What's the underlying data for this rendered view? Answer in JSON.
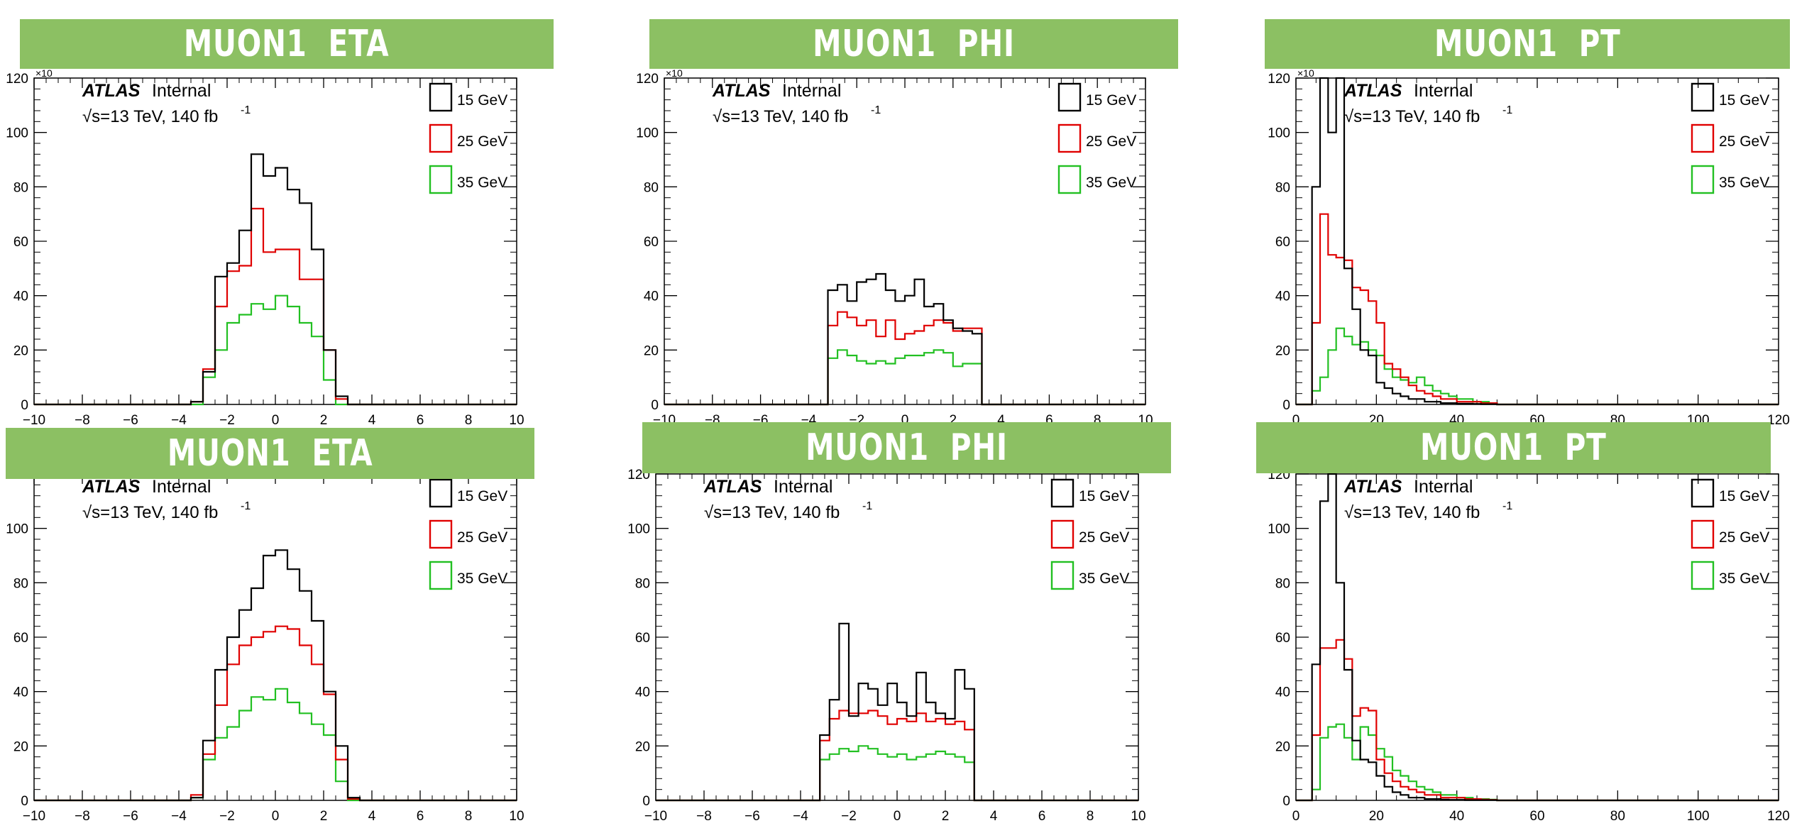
{
  "panel_style": {
    "banner_color": "#8cc063",
    "series_colors": [
      "#000000",
      "#e00000",
      "#22c022"
    ],
    "experiment": "ATLAS",
    "experiment_status": "Internal",
    "energy_label": "√s=13 TeV, 140 fb",
    "lumi_exp": "-1",
    "multiplier": "×10"
  },
  "chart_data": [
    {
      "type": "line",
      "step": true,
      "title": "MUON1  ETA",
      "xlabel": "",
      "ylabel": "",
      "xlim": [
        -10,
        10
      ],
      "ylim": [
        0,
        120
      ],
      "xticks": [
        "−10",
        "−8",
        "−6",
        "−4",
        "−2",
        "0",
        "2",
        "4",
        "6",
        "8",
        "10"
      ],
      "yticks": [
        "0",
        "20",
        "40",
        "60",
        "80",
        "100",
        "120"
      ],
      "show_multiplier": true,
      "legend_position": "top-right",
      "bin_edges": [
        -3.5,
        -3.0,
        -2.5,
        -2.0,
        -1.5,
        -1.0,
        -0.5,
        0.0,
        0.5,
        1.0,
        1.5,
        2.0,
        2.5,
        3.0,
        3.5
      ],
      "series": [
        {
          "name": "15 GeV",
          "color": "#000000",
          "values": [
            1,
            12,
            47,
            52,
            64,
            92,
            84,
            87,
            79,
            74,
            57,
            20,
            3,
            0
          ]
        },
        {
          "name": "25 GeV",
          "color": "#e00000",
          "values": [
            1,
            13,
            36,
            49,
            51,
            72,
            56,
            57,
            57,
            46,
            46,
            20,
            2,
            0
          ]
        },
        {
          "name": "35 GeV",
          "color": "#22c022",
          "values": [
            0,
            10,
            20,
            30,
            33,
            37,
            35,
            40,
            36,
            30,
            25,
            9,
            0,
            0
          ]
        }
      ]
    },
    {
      "type": "line",
      "step": true,
      "title": "MUON1  PHI",
      "xlabel": "",
      "ylabel": "",
      "xlim": [
        -10,
        10
      ],
      "ylim": [
        0,
        120
      ],
      "xticks": [
        "−10",
        "−8",
        "−6",
        "−4",
        "−2",
        "0",
        "2",
        "4",
        "6",
        "8",
        "10"
      ],
      "yticks": [
        "0",
        "20",
        "40",
        "60",
        "80",
        "100",
        "120"
      ],
      "show_multiplier": true,
      "legend_position": "top-right",
      "bin_edges": [
        -3.2,
        -2.8,
        -2.4,
        -2.0,
        -1.6,
        -1.2,
        -0.8,
        -0.4,
        0.0,
        0.4,
        0.8,
        1.2,
        1.6,
        2.0,
        2.4,
        2.8,
        3.2
      ],
      "series": [
        {
          "name": "15 GeV",
          "color": "#000000",
          "values": [
            42,
            44,
            38,
            45,
            46,
            48,
            42,
            38,
            40,
            46,
            36,
            37,
            31,
            28,
            27,
            26
          ]
        },
        {
          "name": "25 GeV",
          "color": "#e00000",
          "values": [
            29,
            34,
            32,
            29,
            31,
            25,
            31,
            24,
            26,
            27,
            29,
            31,
            30,
            27,
            28,
            28
          ]
        },
        {
          "name": "35 GeV",
          "color": "#22c022",
          "values": [
            17,
            20,
            18,
            16,
            15,
            16,
            15,
            17,
            18,
            18,
            19,
            20,
            19,
            14,
            15,
            15
          ]
        }
      ]
    },
    {
      "type": "line",
      "step": true,
      "title": "MUON1  PT",
      "xlabel": "",
      "ylabel": "",
      "xlim": [
        0,
        120
      ],
      "ylim": [
        0,
        120
      ],
      "xticks": [
        "0",
        "20",
        "40",
        "60",
        "80",
        "100",
        "120"
      ],
      "yticks": [
        "0",
        "20",
        "40",
        "60",
        "80",
        "100",
        "120"
      ],
      "show_multiplier": true,
      "legend_position": "top-right",
      "bin_edges": [
        4,
        6,
        8,
        10,
        12,
        14,
        16,
        18,
        20,
        22,
        24,
        26,
        28,
        30,
        32,
        34,
        36,
        38,
        40,
        42,
        44,
        46,
        48,
        50
      ],
      "series": [
        {
          "name": "15 GeV",
          "color": "#000000",
          "values": [
            80,
            120,
            100,
            120,
            50,
            35,
            20,
            18,
            8,
            6,
            4,
            3,
            2,
            2,
            1,
            1,
            0.5,
            0.5,
            0.3,
            0.3,
            0.2,
            0.1,
            0.1
          ]
        },
        {
          "name": "25 GeV",
          "color": "#e00000",
          "values": [
            30,
            70,
            55,
            54,
            53,
            43,
            42,
            38,
            30,
            15,
            13,
            10,
            7,
            5,
            4,
            3,
            2,
            2,
            1,
            1,
            1,
            0.5,
            0.5
          ]
        },
        {
          "name": "35 GeV",
          "color": "#22c022",
          "values": [
            5,
            10,
            20,
            28,
            25,
            22,
            23,
            20,
            18,
            13,
            10,
            9,
            8,
            10,
            7,
            5,
            4,
            3,
            2,
            2,
            1,
            1,
            0.5
          ]
        }
      ]
    },
    {
      "type": "line",
      "step": true,
      "title": "MUON1  ETA",
      "xlabel": "",
      "ylabel": "",
      "xlim": [
        -10,
        10
      ],
      "ylim": [
        0,
        120
      ],
      "xticks": [
        "−10",
        "−8",
        "−6",
        "−4",
        "−2",
        "0",
        "2",
        "4",
        "6",
        "8",
        "10"
      ],
      "yticks": [
        "0",
        "20",
        "40",
        "60",
        "80",
        "100",
        ""
      ],
      "show_multiplier": false,
      "legend_position": "top-right",
      "bin_edges": [
        -3.5,
        -3.0,
        -2.5,
        -2.0,
        -1.5,
        -1.0,
        -0.5,
        0.0,
        0.5,
        1.0,
        1.5,
        2.0,
        2.5,
        3.0,
        3.5
      ],
      "series": [
        {
          "name": "15 GeV",
          "color": "#000000",
          "values": [
            1,
            22,
            48,
            60,
            70,
            78,
            90,
            92,
            85,
            77,
            66,
            40,
            20,
            1
          ]
        },
        {
          "name": "25 GeV",
          "color": "#e00000",
          "values": [
            2,
            17,
            35,
            50,
            57,
            60,
            62,
            64,
            63,
            57,
            50,
            39,
            15,
            0.5
          ]
        },
        {
          "name": "35 GeV",
          "color": "#22c022",
          "values": [
            1,
            15,
            23,
            27,
            33,
            38,
            37,
            41,
            36,
            32,
            28,
            24,
            7,
            0
          ]
        }
      ]
    },
    {
      "type": "line",
      "step": true,
      "title": "MUON1  PHI",
      "xlabel": "",
      "ylabel": "",
      "xlim": [
        -10,
        10
      ],
      "ylim": [
        0,
        120
      ],
      "xticks": [
        "−10",
        "−8",
        "−6",
        "−4",
        "−2",
        "0",
        "2",
        "4",
        "6",
        "8",
        "10"
      ],
      "yticks": [
        "0",
        "20",
        "40",
        "60",
        "80",
        "100",
        "120"
      ],
      "show_multiplier": false,
      "legend_position": "top-right",
      "bin_edges": [
        -3.2,
        -2.8,
        -2.4,
        -2.0,
        -1.6,
        -1.2,
        -0.8,
        -0.4,
        0.0,
        0.4,
        0.8,
        1.2,
        1.6,
        2.0,
        2.4,
        2.8,
        3.2
      ],
      "series": [
        {
          "name": "15 GeV",
          "color": "#000000",
          "values": [
            24,
            37,
            65,
            31,
            43,
            41,
            35,
            43,
            36,
            31,
            47,
            36,
            32,
            30,
            48,
            41
          ]
        },
        {
          "name": "25 GeV",
          "color": "#e00000",
          "values": [
            22,
            30,
            33,
            32,
            32,
            33,
            31,
            28,
            30,
            29,
            32,
            29,
            30,
            28,
            29,
            26
          ]
        },
        {
          "name": "35 GeV",
          "color": "#22c022",
          "values": [
            15,
            17,
            19,
            18,
            20,
            19,
            17,
            16,
            17,
            15,
            16,
            17,
            18,
            17,
            16,
            14
          ]
        }
      ]
    },
    {
      "type": "line",
      "step": true,
      "title": "MUON1  PT",
      "xlabel": "",
      "ylabel": "",
      "xlim": [
        0,
        120
      ],
      "ylim": [
        0,
        120
      ],
      "xticks": [
        "0",
        "20",
        "40",
        "60",
        "80",
        "100",
        "120"
      ],
      "yticks": [
        "0",
        "20",
        "40",
        "60",
        "80",
        "100",
        "120"
      ],
      "show_multiplier": false,
      "legend_position": "top-right",
      "bin_edges": [
        4,
        6,
        8,
        10,
        12,
        14,
        16,
        18,
        20,
        22,
        24,
        26,
        28,
        30,
        32,
        34,
        36,
        38,
        40,
        42,
        44,
        46,
        48,
        50
      ],
      "series": [
        {
          "name": "15 GeV",
          "color": "#000000",
          "values": [
            50,
            110,
            120,
            80,
            48,
            22,
            15,
            14,
            9,
            5,
            3,
            2,
            1,
            1,
            0.5,
            0.5,
            0.3,
            0.2,
            0.2,
            0.1,
            0.1,
            0.1,
            0.1
          ]
        },
        {
          "name": "25 GeV",
          "color": "#e00000",
          "values": [
            24,
            56,
            56,
            59,
            52,
            31,
            34,
            33,
            15,
            10,
            7,
            5,
            4,
            3,
            2,
            2,
            1,
            1,
            1,
            0.5,
            0.5,
            0.3,
            0.2
          ]
        },
        {
          "name": "35 GeV",
          "color": "#22c022",
          "values": [
            4,
            23,
            27,
            28,
            23,
            15,
            27,
            24,
            19,
            16,
            11,
            9,
            7,
            5,
            4,
            3,
            2,
            2,
            1,
            1,
            0.5,
            0.5,
            0.3
          ]
        }
      ]
    }
  ]
}
